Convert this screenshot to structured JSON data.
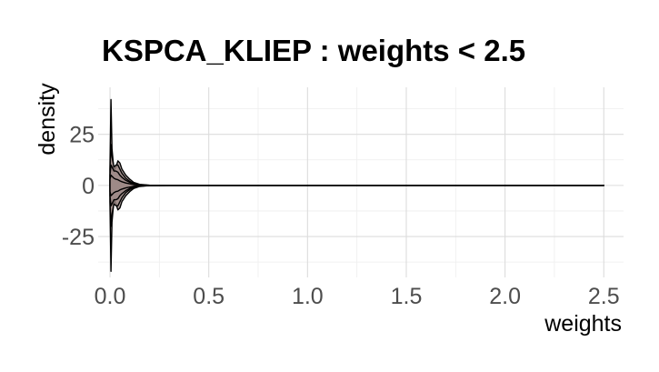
{
  "chart_data": {
    "type": "area",
    "subtype": "mirrored-density",
    "title": "KSPCA_KLIEP : weights < 2.5",
    "xlabel": "weights",
    "ylabel": "density",
    "xlim": [
      -0.06,
      2.6
    ],
    "ylim": [
      -45,
      48
    ],
    "x_ticks": [
      0.0,
      0.5,
      1.0,
      1.5,
      2.0,
      2.5
    ],
    "x_tick_labels": [
      "0.0",
      "0.5",
      "1.0",
      "1.5",
      "2.0",
      "2.5"
    ],
    "y_ticks": [
      -25,
      0,
      25
    ],
    "y_tick_labels": [
      "-25",
      "0",
      "25"
    ],
    "grid": true,
    "legend": "none",
    "colors": {
      "fill": "#9e8a87",
      "stroke": "#000000"
    },
    "series": [
      {
        "x": [
          0.0,
          0.005,
          0.01,
          0.02,
          0.03,
          0.04,
          0.05,
          0.06,
          0.08,
          0.1,
          0.12,
          0.15,
          0.2,
          0.3,
          2.5
        ],
        "values": [
          10.0,
          42.0,
          18.0,
          7.0,
          9.0,
          12.0,
          11.0,
          8.0,
          5.0,
          3.0,
          1.5,
          0.5,
          0.1,
          0.0,
          0.0
        ]
      },
      {
        "x": [
          0.0,
          0.005,
          0.01,
          0.02,
          0.03,
          0.04,
          0.05,
          0.06,
          0.08,
          0.1,
          0.12,
          0.15,
          0.2,
          0.3,
          2.5
        ],
        "values": [
          8.0,
          20.0,
          14.0,
          9.0,
          10.0,
          10.0,
          8.0,
          6.0,
          3.5,
          2.0,
          1.0,
          0.3,
          0.05,
          0.0,
          0.0
        ]
      },
      {
        "x": [
          0.0,
          0.005,
          0.01,
          0.02,
          0.03,
          0.04,
          0.05,
          0.06,
          0.08,
          0.1,
          0.12,
          0.15,
          0.2,
          0.3,
          2.5
        ],
        "values": [
          5.0,
          10.0,
          9.0,
          7.0,
          7.0,
          6.5,
          5.0,
          4.0,
          2.5,
          1.5,
          0.8,
          0.3,
          0.05,
          0.0,
          0.0
        ]
      },
      {
        "x": [
          0.0,
          0.005,
          0.01,
          0.02,
          0.03,
          0.04,
          0.05,
          0.06,
          0.08,
          0.1,
          0.12,
          0.15,
          0.2,
          0.3,
          2.5
        ],
        "values": [
          3.0,
          5.0,
          4.5,
          3.5,
          3.0,
          2.8,
          2.2,
          1.8,
          1.2,
          0.8,
          0.4,
          0.15,
          0.03,
          0.0,
          0.0
        ]
      }
    ]
  }
}
